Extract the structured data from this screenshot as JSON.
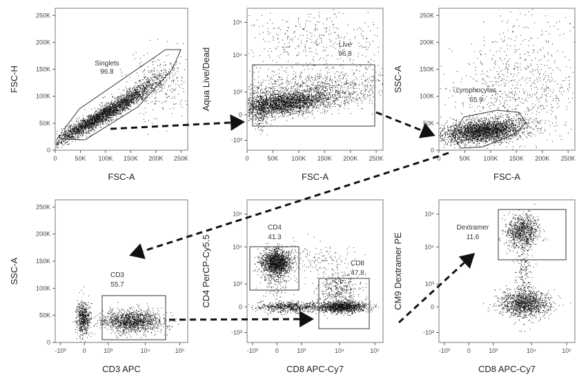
{
  "chart_data": [
    {
      "type": "scatter",
      "panel": "singlets",
      "xlabel": "FSC-A",
      "ylabel": "FSC-H",
      "xticks": [
        "0",
        "50K",
        "100K",
        "150K",
        "200K",
        "250K"
      ],
      "yticks": [
        "0",
        "50K",
        "100K",
        "150K",
        "200K",
        "250K"
      ],
      "gate": {
        "name": "Singlets",
        "value": "96.8"
      }
    },
    {
      "type": "scatter",
      "panel": "live",
      "xlabel": "FSC-A",
      "ylabel": "Aqua Live/Dead",
      "xticks": [
        "0",
        "50K",
        "100K",
        "150K",
        "200K",
        "250K"
      ],
      "yticks": [
        "-10³",
        "0",
        "10³",
        "10⁴",
        "10⁵"
      ],
      "gate": {
        "name": "Live",
        "value": "96.8"
      }
    },
    {
      "type": "scatter",
      "panel": "lymphocytes",
      "xlabel": "FSC-A",
      "ylabel": "SSC-A",
      "xticks": [
        "0",
        "50K",
        "100K",
        "150K",
        "200K",
        "250K"
      ],
      "yticks": [
        "0",
        "50K",
        "100K",
        "150K",
        "200K",
        "250K"
      ],
      "gate": {
        "name": "Lymphocytes",
        "value": "65.9"
      }
    },
    {
      "type": "scatter",
      "panel": "cd3",
      "xlabel": "CD3 APC",
      "ylabel": "SSC-A",
      "xticks": [
        "-10³",
        "0",
        "10³",
        "10⁴",
        "10⁵"
      ],
      "yticks": [
        "0",
        "50K",
        "100K",
        "150K",
        "200K",
        "250K"
      ],
      "gate": {
        "name": "CD3",
        "value": "55.7"
      }
    },
    {
      "type": "scatter",
      "panel": "cd4cd8",
      "xlabel": "CD8 APC-Cy7",
      "ylabel": "CD4 PerCP-Cy5.5",
      "xticks": [
        "-10³",
        "0",
        "10³",
        "10⁴",
        "10⁵"
      ],
      "yticks": [
        "-10³",
        "0",
        "10³",
        "10⁴",
        "10⁵"
      ],
      "gates": [
        {
          "name": "CD4",
          "value": "41.3"
        },
        {
          "name": "CD8",
          "value": "47.8"
        }
      ]
    },
    {
      "type": "scatter",
      "panel": "dextramer",
      "xlabel": "CD8 APC-Cy7",
      "ylabel": "CM9 Dextramer PE",
      "xticks": [
        "-10³",
        "0",
        "10³",
        "10⁴",
        "10⁵"
      ],
      "yticks": [
        "-10³",
        "0",
        "10³",
        "10⁴",
        "10⁵"
      ],
      "gate": {
        "name": "Dextramer",
        "value": "11.6"
      }
    }
  ]
}
